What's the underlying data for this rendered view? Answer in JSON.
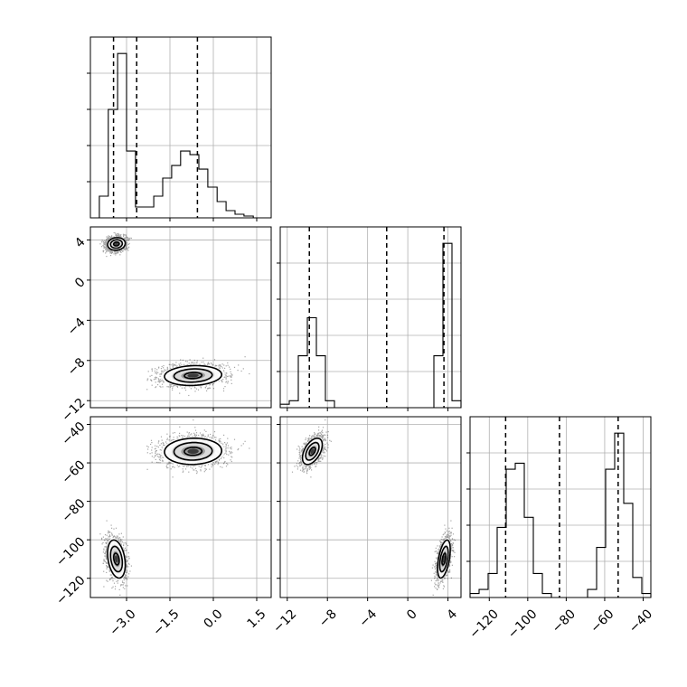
{
  "chart_data": {
    "type": "corner",
    "grid": true,
    "parameters": [
      {
        "id": "p1",
        "range": [
          -4.25,
          2.0
        ],
        "ticks": [
          -3.0,
          -1.5,
          0.0,
          1.5
        ],
        "tick_labels": [
          "−3.0",
          "−1.5",
          "0.0",
          "1.5"
        ],
        "quantiles": [
          -3.45,
          -2.65,
          -0.55
        ],
        "hist": {
          "edges": [
            -4.25,
            -3.94,
            -3.63,
            -3.31,
            -3.0,
            -2.69,
            -2.38,
            -2.06,
            -1.75,
            -1.44,
            -1.13,
            -0.81,
            -0.5,
            -0.19,
            0.13,
            0.44,
            0.75,
            1.06,
            1.38,
            1.69,
            2.0
          ],
          "counts": [
            0,
            0.12,
            0.6,
            0.91,
            0.37,
            0.06,
            0.06,
            0.12,
            0.22,
            0.29,
            0.37,
            0.35,
            0.27,
            0.17,
            0.09,
            0.04,
            0.02,
            0.01,
            0.0,
            0.0
          ]
        }
      },
      {
        "id": "p2",
        "range": [
          -12.7,
          5.3
        ],
        "ticks": [
          -12,
          -8,
          -4,
          0,
          4
        ],
        "tick_labels": [
          "−12",
          "−8",
          "−4",
          "0",
          "4"
        ],
        "quantiles": [
          -9.8,
          -2.1,
          3.6
        ],
        "hist": {
          "edges": [
            -12.7,
            -11.8,
            -10.9,
            -10.0,
            -9.1,
            -8.2,
            -7.3,
            -6.4,
            -5.5,
            -4.6,
            -3.7,
            -2.8,
            -1.9,
            -1.0,
            -0.1,
            0.8,
            1.7,
            2.6,
            3.5,
            4.4,
            5.3
          ],
          "counts": [
            0.02,
            0.04,
            0.3,
            0.52,
            0.3,
            0.04,
            0,
            0,
            0,
            0,
            0,
            0,
            0,
            0,
            0,
            0,
            0,
            0.3,
            0.95,
            0.04
          ]
        }
      },
      {
        "id": "p3",
        "range": [
          -130,
          -36
        ],
        "ticks": [
          -120,
          -100,
          -80,
          -60,
          -40
        ],
        "tick_labels": [
          "−120",
          "−100",
          "−80",
          "−60",
          "−40"
        ],
        "quantiles": [
          -111.5,
          -83.5,
          -53.0
        ],
        "hist": {
          "edges": [
            -130,
            -125.3,
            -120.6,
            -115.9,
            -111.2,
            -106.5,
            -101.8,
            -97.1,
            -92.4,
            -87.7,
            -83.0,
            -78.3,
            -73.6,
            -68.9,
            -64.2,
            -59.5,
            -54.8,
            -50.1,
            -45.4,
            -40.7,
            -36.0
          ],
          "counts": [
            0.02,
            0.04,
            0.12,
            0.35,
            0.64,
            0.67,
            0.4,
            0.12,
            0.02,
            0,
            0,
            0,
            0,
            0.04,
            0.25,
            0.64,
            0.82,
            0.47,
            0.1,
            0.02
          ]
        }
      }
    ],
    "modes": [
      {
        "weight": 0.46,
        "mean": [
          -3.35,
          3.6,
          -110.0
        ],
        "sd": [
          0.17,
          0.35,
          5.5
        ],
        "corr": [
          [
            1,
            0.1,
            -0.3
          ],
          [
            0.1,
            1,
            0.5
          ],
          [
            -0.3,
            0.5,
            1
          ]
        ]
      },
      {
        "weight": 0.54,
        "mean": [
          -0.7,
          -9.5,
          -54.0
        ],
        "sd": [
          0.55,
          0.55,
          3.8
        ],
        "corr": [
          [
            1,
            0.1,
            0.05
          ],
          [
            0.1,
            1,
            0.5
          ],
          [
            0.05,
            0.5,
            1
          ]
        ]
      }
    ]
  }
}
